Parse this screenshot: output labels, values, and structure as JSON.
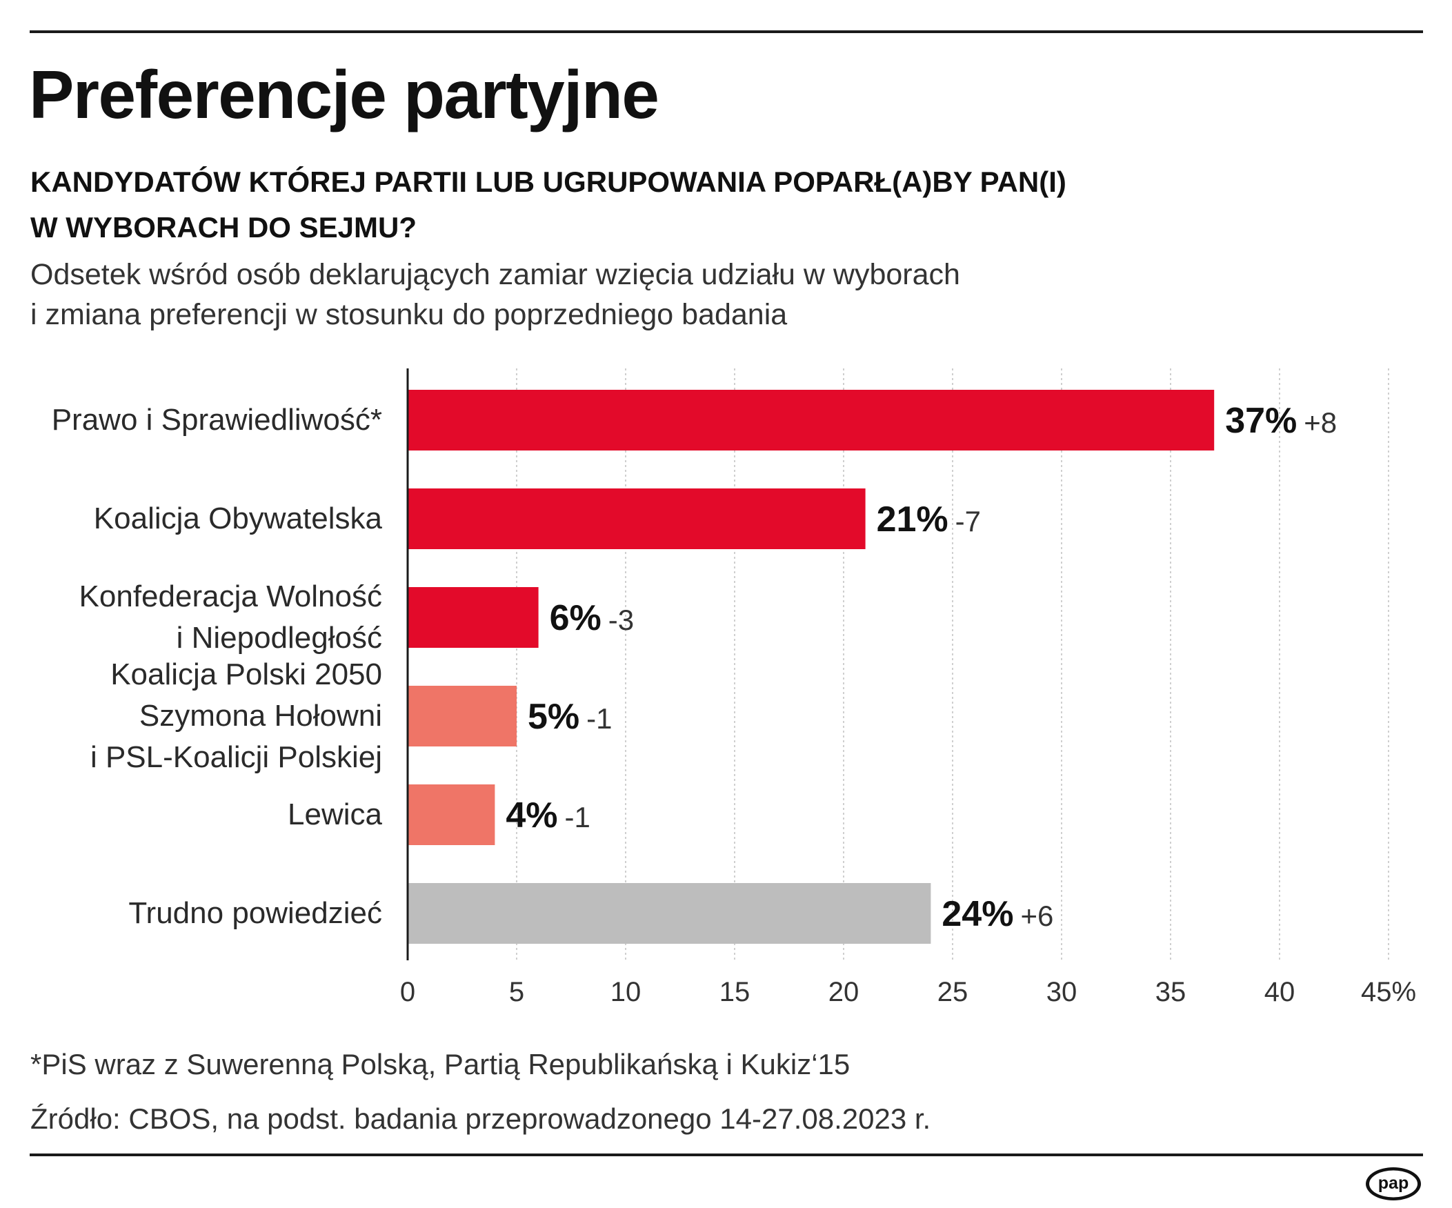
{
  "title": "Preferencje partyjne",
  "question": {
    "line1": "KANDYDATÓW KTÓREJ PARTII LUB UGRUPOWANIA POPARŁ(A)BY PAN(I)",
    "line2": "W WYBORACH DO SEJMU?"
  },
  "subtitle": {
    "line1": "Odsetek wśród osób deklarujących zamiar wzięcia udziału w wyborach",
    "line2": "i zmiana preferencji w stosunku do poprzedniego badania"
  },
  "chart_data": {
    "type": "bar",
    "orientation": "horizontal",
    "categories": [
      [
        "Prawo i Sprawiedliwość*"
      ],
      [
        "Koalicja Obywatelska"
      ],
      [
        "Konfederacja Wolność",
        "i Niepodległość"
      ],
      [
        "Koalicja Polski 2050",
        "Szymona Hołowni",
        "i PSL-Koalicji Polskiej"
      ],
      [
        "Lewica"
      ],
      [
        "Trudno powiedzieć"
      ]
    ],
    "values": [
      37,
      21,
      6,
      5,
      4,
      24
    ],
    "value_labels": [
      "37%",
      "21%",
      "6%",
      "5%",
      "4%",
      "24%"
    ],
    "changes": [
      "+8",
      "-7",
      "-3",
      "-1",
      "-1",
      "+6"
    ],
    "bar_colors": [
      "#e30a2a",
      "#e30a2a",
      "#e30a2a",
      "#ef7567",
      "#ef7567",
      "#bdbdbd"
    ],
    "xlim": [
      0,
      45
    ],
    "ticks": [
      0,
      5,
      10,
      15,
      20,
      25,
      30,
      35,
      40,
      45
    ],
    "tick_labels": [
      "0",
      "5",
      "10",
      "15",
      "20",
      "25",
      "30",
      "35",
      "40",
      "45%"
    ],
    "grid": true
  },
  "footnote": "*PiS wraz z Suwerenną Polską, Partią Republikańską i Kukiz‘15",
  "source": "Źródło: CBOS, na podst. badania przeprowadzonego 14-27.08.2023 r.",
  "logo": {
    "text": "pap",
    "icon": "pap-logo-icon"
  },
  "colors": {
    "text": "#1a1a1a",
    "grid": "#cfcfcf",
    "axis": "#1a1a1a"
  }
}
